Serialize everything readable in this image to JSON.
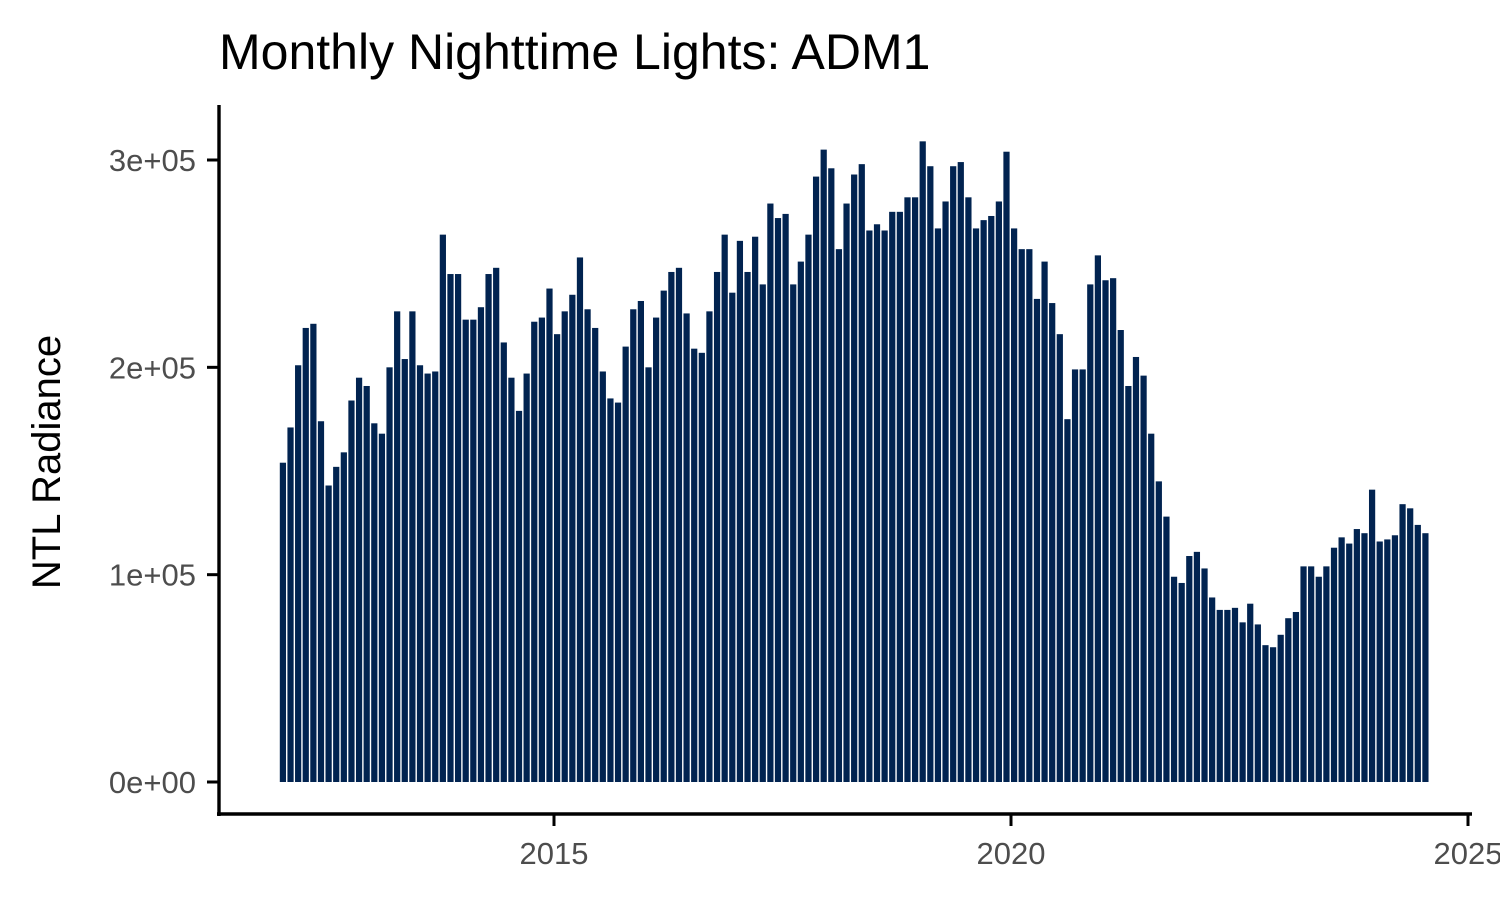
{
  "chart_data": {
    "type": "bar",
    "title": "Monthly Nighttime Lights: ADM1",
    "xlabel": "",
    "ylabel": "NTL Radiance",
    "bar_color": "#012350",
    "x_start": "2012-01",
    "x_ticks": [
      "2015",
      "2020",
      "2025"
    ],
    "y_ticks": [
      "0e+00",
      "1e+05",
      "2e+05",
      "3e+05"
    ],
    "ylim": [
      0,
      310000
    ],
    "grid": false,
    "legend": "none",
    "values": [
      154000,
      171000,
      201000,
      219000,
      221000,
      174000,
      143000,
      152000,
      159000,
      184000,
      195000,
      191000,
      173000,
      168000,
      200000,
      227000,
      204000,
      227000,
      201000,
      197000,
      198000,
      264000,
      245000,
      245000,
      223000,
      223000,
      229000,
      245000,
      248000,
      212000,
      195000,
      179000,
      197000,
      222000,
      224000,
      238000,
      216000,
      227000,
      235000,
      253000,
      228000,
      219000,
      198000,
      185000,
      183000,
      210000,
      228000,
      232000,
      200000,
      224000,
      237000,
      246000,
      248000,
      226000,
      209000,
      207000,
      227000,
      246000,
      264000,
      236000,
      261000,
      246000,
      263000,
      240000,
      279000,
      272000,
      274000,
      240000,
      251000,
      264000,
      292000,
      305000,
      296000,
      257000,
      279000,
      293000,
      298000,
      266000,
      269000,
      266000,
      275000,
      275000,
      282000,
      282000,
      309000,
      297000,
      267000,
      280000,
      297000,
      299000,
      282000,
      267000,
      271000,
      273000,
      280000,
      304000,
      267000,
      257000,
      257000,
      233000,
      251000,
      231000,
      216000,
      175000,
      199000,
      199000,
      240000,
      254000,
      242000,
      243000,
      218000,
      191000,
      205000,
      196000,
      168000,
      145000,
      128000,
      99000,
      96000,
      109000,
      111000,
      103000,
      89000,
      83000,
      83000,
      84000,
      77000,
      86000,
      76000,
      66000,
      65000,
      71000,
      79000,
      82000,
      104000,
      104000,
      99000,
      104000,
      113000,
      118000,
      115000,
      122000,
      120000,
      141000,
      116000,
      117000,
      119000,
      134000,
      132000,
      124000,
      120000
    ]
  }
}
